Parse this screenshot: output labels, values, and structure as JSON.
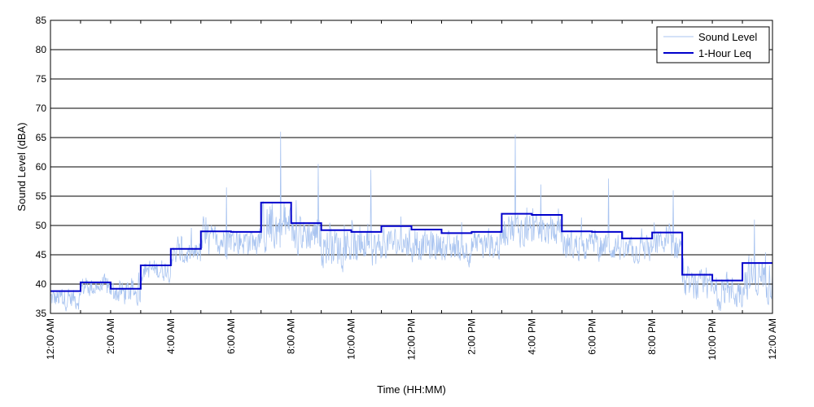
{
  "chart_data": {
    "type": "line",
    "xlabel": "Time (HH:MM)",
    "ylabel": "Sound Level (dBA)",
    "ylim": [
      35,
      85
    ],
    "xlim_hours": [
      0,
      24
    ],
    "grid": "horizontal",
    "legend_placement": "top-right",
    "yticks": [
      "35",
      "40",
      "45",
      "50",
      "55",
      "60",
      "65",
      "70",
      "75",
      "80",
      "85"
    ],
    "xticks": [
      {
        "hour": 0,
        "label": "12:00 AM"
      },
      {
        "hour": 2,
        "label": "2:00 AM"
      },
      {
        "hour": 4,
        "label": "4:00 AM"
      },
      {
        "hour": 6,
        "label": "6:00 AM"
      },
      {
        "hour": 8,
        "label": "8:00 AM"
      },
      {
        "hour": 10,
        "label": "10:00 AM"
      },
      {
        "hour": 12,
        "label": "12:00 PM"
      },
      {
        "hour": 14,
        "label": "2:00 PM"
      },
      {
        "hour": 16,
        "label": "4:00 PM"
      },
      {
        "hour": 18,
        "label": "6:00 PM"
      },
      {
        "hour": 20,
        "label": "8:00 PM"
      },
      {
        "hour": 22,
        "label": "10:00 PM"
      },
      {
        "hour": 24,
        "label": "12:00 AM"
      }
    ],
    "series": [
      {
        "name": "Sound Level",
        "color": "#a9c4f0",
        "style": "thin-line",
        "hourly_mean_dBA": [
          37.5,
          39.5,
          38.5,
          42.5,
          45,
          47.5,
          47.5,
          49.5,
          48.5,
          46.5,
          46,
          47,
          46.5,
          46,
          46.5,
          49.5,
          49,
          46.5,
          46.5,
          45.5,
          46.5,
          39.5,
          38.5,
          41
        ],
        "hourly_spread_dBA": [
          2.5,
          2.5,
          3,
          2.5,
          3,
          3.5,
          3.5,
          6,
          4.5,
          4.5,
          4.5,
          3.5,
          3.5,
          3.5,
          3.5,
          4,
          3.5,
          3.5,
          3.5,
          3,
          3.5,
          3.5,
          4,
          5
        ],
        "peaks": [
          {
            "hour": 7.65,
            "value": 66
          },
          {
            "hour": 15.45,
            "value": 65.5
          },
          {
            "hour": 8.9,
            "value": 60.5
          },
          {
            "hour": 10.65,
            "value": 59.5
          },
          {
            "hour": 5.85,
            "value": 56.5
          },
          {
            "hour": 18.55,
            "value": 58
          },
          {
            "hour": 16.3,
            "value": 57
          },
          {
            "hour": 20.7,
            "value": 56
          },
          {
            "hour": 23.4,
            "value": 51
          }
        ]
      },
      {
        "name": "1-Hour Leq",
        "color": "#0000cc",
        "style": "step",
        "x_hour_start": [
          0,
          1,
          2,
          3,
          4,
          5,
          6,
          7,
          8,
          9,
          10,
          11,
          12,
          13,
          14,
          15,
          16,
          17,
          18,
          19,
          20,
          21,
          22,
          23
        ],
        "values": [
          38.8,
          40.3,
          39.2,
          43.2,
          46,
          49,
          48.9,
          53.9,
          50.4,
          49.2,
          48.9,
          49.9,
          49.3,
          48.7,
          48.9,
          52,
          51.8,
          49,
          48.9,
          47.8,
          48.8,
          41.6,
          40.6,
          43.6
        ]
      }
    ]
  }
}
